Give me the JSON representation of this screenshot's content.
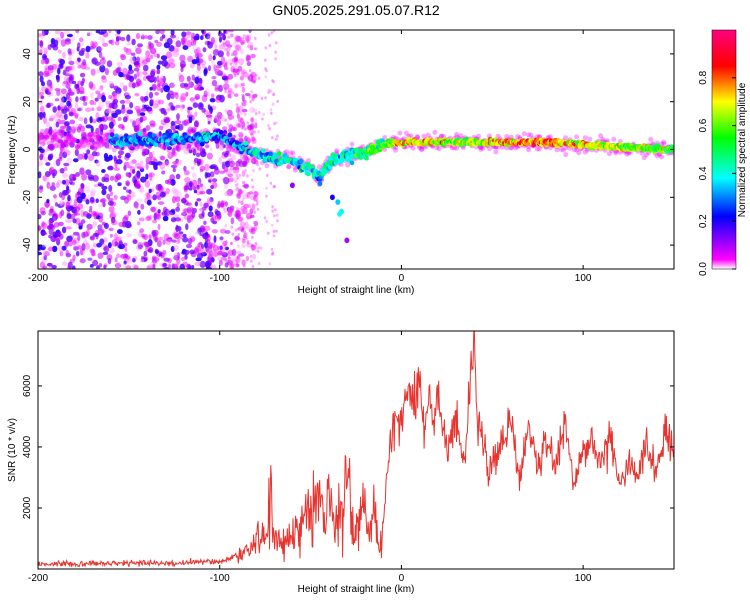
{
  "title": "GN05.2025.291.05.07.R12",
  "chart_data": [
    {
      "type": "heatmap",
      "xlabel": "Height of straight line (km)",
      "ylabel": "Frequency (Hz)",
      "xlim": [
        -200,
        150
      ],
      "ylim": [
        -50,
        50
      ],
      "x_ticks": [
        -200,
        -100,
        0,
        100
      ],
      "y_ticks": [
        -40,
        -20,
        0,
        20,
        40
      ],
      "colorbar": {
        "label": "Normalized spectral amplitude",
        "range": [
          0,
          1
        ],
        "ticks": [
          "0.0",
          "0.2",
          "0.4",
          "0.6",
          "0.8"
        ],
        "colors": [
          "#ffffff",
          "#ff00ff",
          "#0000ff",
          "#00ffff",
          "#00ff00",
          "#ffff00",
          "#ff0000",
          "#ff0080"
        ]
      },
      "ridge": {
        "x": [
          -150,
          -120,
          -100,
          -90,
          -80,
          -70,
          -60,
          -50,
          -45,
          -40,
          -35,
          -30,
          -20,
          -10,
          0,
          20,
          40,
          60,
          80,
          100,
          120,
          150
        ],
        "y": [
          4,
          4,
          6,
          2,
          -2,
          -4,
          -5,
          -8,
          -12,
          -6,
          -4,
          -3,
          -1,
          2,
          3,
          3,
          3,
          3,
          3,
          2,
          1,
          0
        ],
        "amplitude": [
          0.3,
          0.3,
          0.28,
          0.32,
          0.34,
          0.36,
          0.4,
          0.45,
          0.4,
          0.42,
          0.4,
          0.42,
          0.48,
          0.55,
          0.75,
          0.65,
          0.6,
          0.78,
          0.8,
          0.7,
          0.62,
          0.55
        ]
      },
      "grid": false
    },
    {
      "type": "line",
      "xlabel": "Height of straight line (km)",
      "ylabel": "SNR (10 * v/v)",
      "xlim": [
        -200,
        150
      ],
      "ylim": [
        0,
        7800
      ],
      "x_ticks": [
        -200,
        -100,
        0,
        100
      ],
      "y_ticks": [
        2000,
        4000,
        6000
      ],
      "color": "#e8332f",
      "series": [
        {
          "x": [
            -200,
            -190,
            -180,
            -170,
            -160,
            -150,
            -140,
            -130,
            -120,
            -110,
            -100,
            -95,
            -90,
            -85,
            -80,
            -75,
            -72,
            -70,
            -65,
            -60,
            -55,
            -50,
            -45,
            -42,
            -40,
            -38,
            -35,
            -30,
            -28,
            -25,
            -20,
            -18,
            -15,
            -12,
            -10,
            -8,
            -5,
            -2,
            0,
            2,
            5,
            8,
            10,
            12,
            15,
            18,
            20,
            22,
            25,
            28,
            30,
            32,
            35,
            38,
            40,
            42,
            45,
            48,
            50,
            55,
            60,
            65,
            70,
            75,
            80,
            85,
            90,
            95,
            100,
            105,
            110,
            115,
            120,
            125,
            130,
            135,
            140,
            145,
            150
          ],
          "y": [
            150,
            180,
            160,
            200,
            170,
            190,
            210,
            180,
            200,
            230,
            250,
            350,
            450,
            600,
            900,
            1200,
            2300,
            700,
            1000,
            1200,
            1600,
            1800,
            2500,
            1500,
            3000,
            1600,
            1400,
            3400,
            1700,
            1500,
            1900,
            1200,
            2000,
            600,
            1500,
            3200,
            4500,
            5200,
            4700,
            5500,
            6000,
            5200,
            6400,
            4600,
            5500,
            4800,
            6100,
            5000,
            4000,
            4600,
            5200,
            4100,
            3300,
            6500,
            7600,
            5000,
            4200,
            3000,
            3600,
            4200,
            4800,
            3000,
            4700,
            3200,
            4300,
            3500,
            5000,
            2600,
            3900,
            4300,
            3300,
            4400,
            2800,
            3500,
            3000,
            4200,
            3100,
            4600,
            3800
          ]
        }
      ],
      "grid": false
    }
  ]
}
